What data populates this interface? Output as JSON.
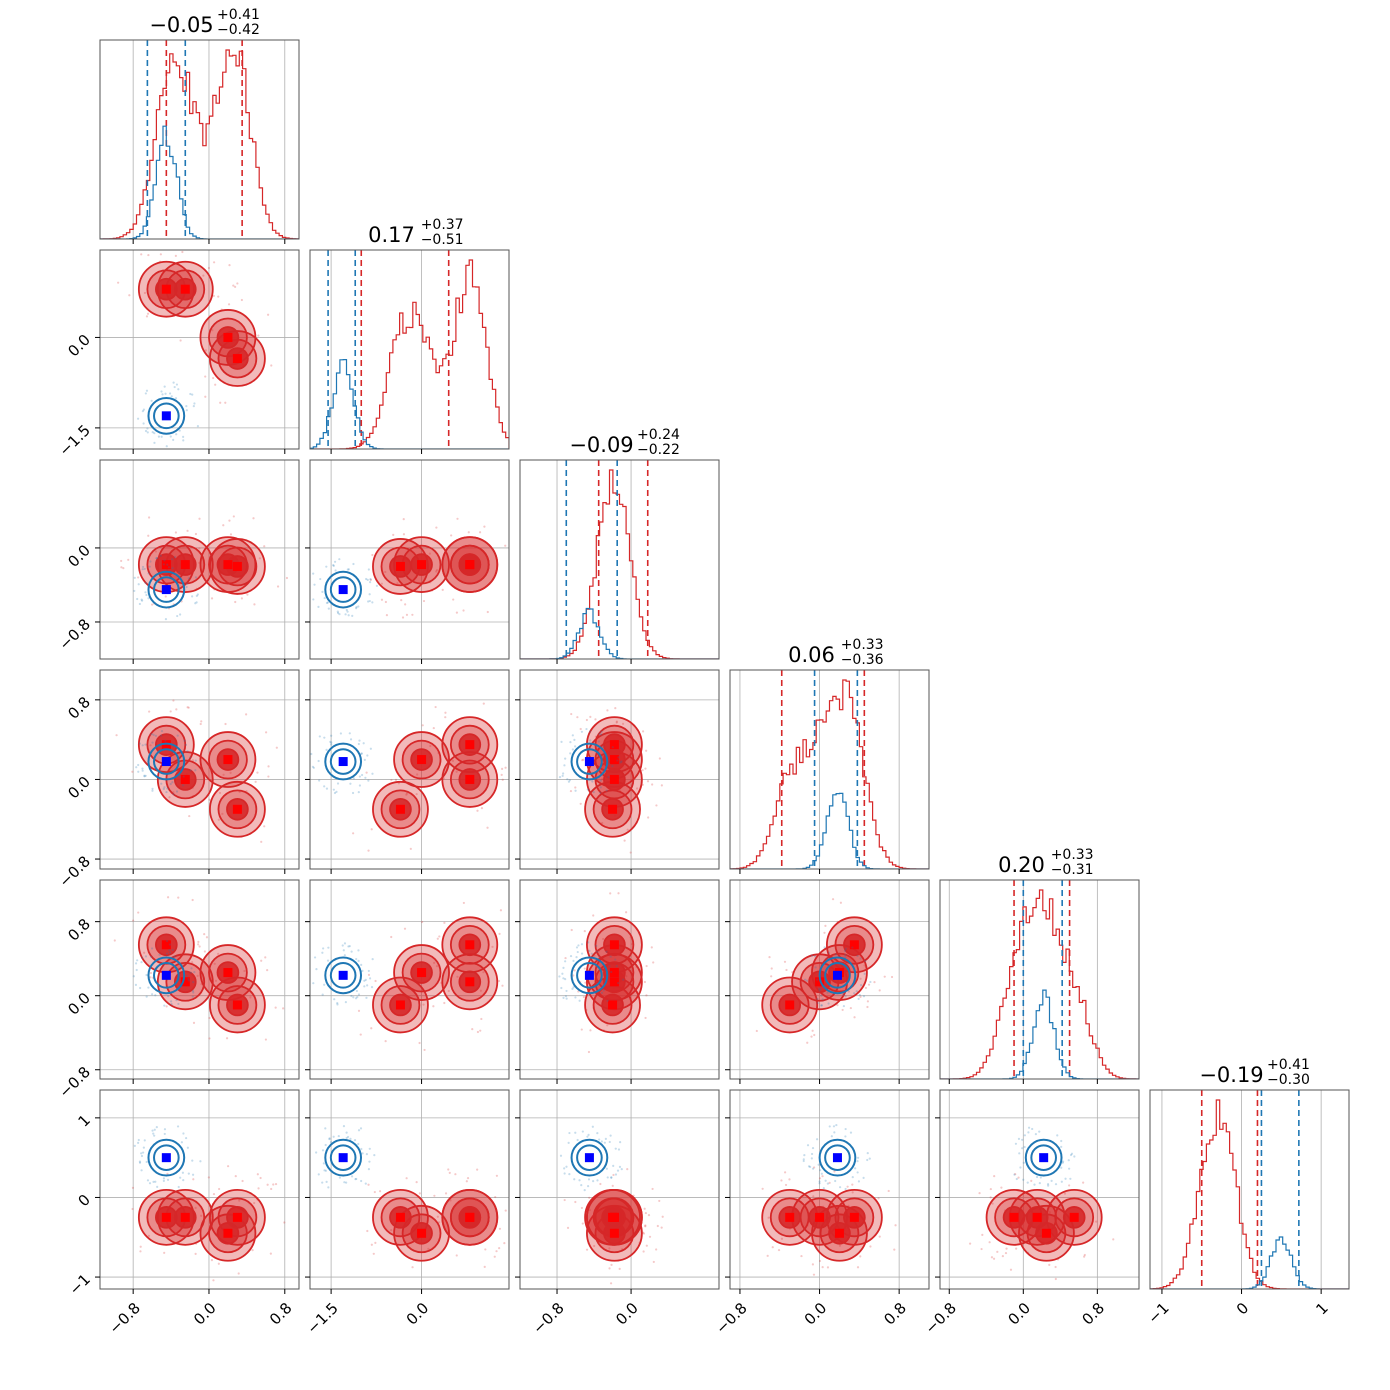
{
  "figure": {
    "colors": {
      "posterior_a": "#d62728",
      "posterior_b": "#1f77b4",
      "marker_a": "#ff0000",
      "marker_b": "#0000ff",
      "grid": "#b0b0b0",
      "frame": "#555555"
    }
  },
  "chart_data": {
    "type": "corner",
    "n_params": 6,
    "grid": true,
    "titles": [
      {
        "value": "−0.05",
        "plus": "+0.41",
        "minus": "−0.42"
      },
      {
        "value": "0.17",
        "plus": "+0.37",
        "minus": "−0.51"
      },
      {
        "value": "−0.09",
        "plus": "+0.24",
        "minus": "−0.22"
      },
      {
        "value": "0.06",
        "plus": "+0.33",
        "minus": "−0.36"
      },
      {
        "value": "0.20",
        "plus": "+0.33",
        "minus": "−0.31"
      },
      {
        "value": "−0.19",
        "plus": "+0.41",
        "minus": "−0.30"
      }
    ],
    "axes": [
      {
        "range": [
          -1.15,
          0.95
        ],
        "ticks": [
          -0.8,
          0.0,
          0.8
        ],
        "tick_labels": [
          "−0.8",
          "0.0",
          "0.8"
        ]
      },
      {
        "range": [
          -1.85,
          1.45
        ],
        "ticks": [
          -1.5,
          0.0
        ],
        "tick_labels": [
          "−1.5",
          "0.0"
        ]
      },
      {
        "range": [
          -1.2,
          0.95
        ],
        "ticks": [
          -0.8,
          0.0
        ],
        "tick_labels": [
          "−0.8",
          "0.0"
        ]
      },
      {
        "range": [
          -0.9,
          1.1
        ],
        "ticks": [
          -0.8,
          0.0,
          0.8
        ],
        "tick_labels": [
          "−0.8",
          "0.0",
          "0.8"
        ]
      },
      {
        "range": [
          -0.9,
          1.25
        ],
        "ticks": [
          -0.8,
          0.0,
          0.8
        ],
        "tick_labels": [
          "−0.8",
          "0.0",
          "0.8"
        ]
      },
      {
        "range": [
          -1.15,
          1.35
        ],
        "ticks": [
          -1,
          0,
          1
        ],
        "tick_labels": [
          "−1",
          "0",
          "1"
        ]
      }
    ],
    "series": [
      {
        "color": "#d62728",
        "marker_color": "#ff0000",
        "quantiles": [
          [
            -0.45,
            0.35
          ],
          [
            -1.0,
            0.45
          ],
          [
            -0.35,
            0.18
          ],
          [
            -0.38,
            0.45
          ],
          [
            -0.1,
            0.5
          ],
          [
            -0.5,
            0.2
          ]
        ],
        "centers": [
          [
            -0.45,
            0.8,
            -0.18,
            0.35,
            0.55,
            -0.25
          ],
          [
            -0.25,
            0.8,
            -0.18,
            0.0,
            0.15,
            -0.25
          ],
          [
            0.2,
            0.0,
            -0.18,
            0.2,
            0.25,
            -0.45
          ],
          [
            0.3,
            -0.35,
            -0.2,
            -0.3,
            -0.1,
            -0.25
          ]
        ]
      },
      {
        "color": "#1f77b4",
        "marker_color": "#0000ff",
        "quantiles": [
          [
            -0.65,
            -0.25
          ],
          [
            -1.55,
            -1.1
          ],
          [
            -0.7,
            -0.15
          ],
          [
            -0.05,
            0.38
          ],
          [
            0.0,
            0.42
          ],
          [
            0.25,
            0.72
          ]
        ],
        "centers": [
          [
            -0.45,
            -1.3,
            -0.45,
            0.18,
            0.22,
            0.5
          ]
        ]
      }
    ]
  }
}
